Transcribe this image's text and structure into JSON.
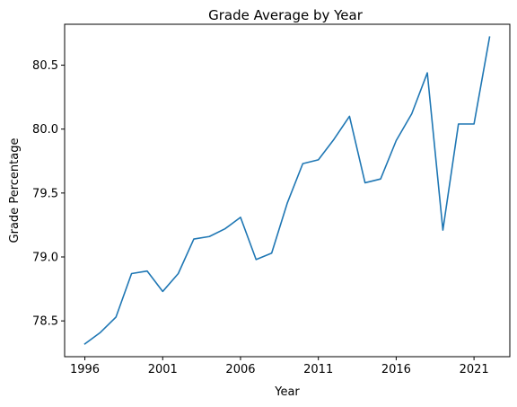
{
  "chart_data": {
    "type": "line",
    "title": "Grade Average by Year",
    "xlabel": "Year",
    "ylabel": "Grade Percentage",
    "xlim": [
      1994.7,
      2023.3
    ],
    "ylim": [
      78.22,
      80.82
    ],
    "x_ticks": [
      1996,
      2001,
      2006,
      2011,
      2016,
      2021
    ],
    "x_tick_labels": [
      "1996",
      "2001",
      "2006",
      "2011",
      "2016",
      "2021"
    ],
    "y_ticks": [
      78.5,
      79.0,
      79.5,
      80.0,
      80.5
    ],
    "y_tick_labels": [
      "78.5",
      "79.0",
      "79.5",
      "80.0",
      "80.5"
    ],
    "grid": false,
    "legend": false,
    "series": [
      {
        "color": "#1f77b4",
        "x": [
          1996,
          1997,
          1998,
          1999,
          2000,
          2001,
          2002,
          2003,
          2004,
          2005,
          2006,
          2007,
          2008,
          2009,
          2010,
          2011,
          2012,
          2013,
          2014,
          2015,
          2016,
          2017,
          2018,
          2019,
          2020,
          2021,
          2022
        ],
        "y": [
          78.32,
          78.41,
          78.53,
          78.87,
          78.89,
          78.73,
          78.87,
          79.14,
          79.16,
          79.22,
          79.31,
          78.98,
          79.03,
          79.42,
          79.73,
          79.76,
          79.92,
          80.1,
          79.58,
          79.61,
          79.91,
          80.12,
          80.44,
          79.21,
          80.04,
          80.04,
          80.72
        ]
      }
    ]
  }
}
